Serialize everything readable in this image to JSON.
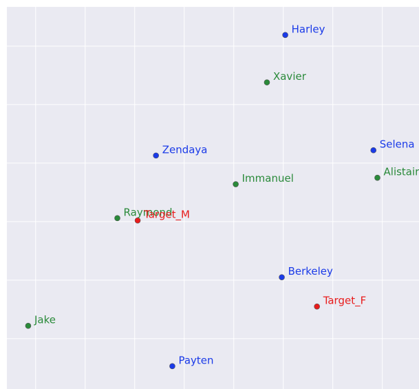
{
  "chart_data": {
    "type": "scatter",
    "xlim": [
      -0.58,
      7.74
    ],
    "ylim": [
      -0.86,
      5.67
    ],
    "xticks": [
      0,
      1,
      2,
      3,
      4,
      5,
      6,
      7
    ],
    "yticks": [
      0,
      1,
      2,
      3,
      4,
      5
    ],
    "grid": true,
    "series": [
      {
        "color": "#1a3ae8",
        "labels": [
          "Harley",
          "Selena",
          "Zendaya",
          "Berkeley",
          "Payten"
        ],
        "x": [
          5.04,
          6.82,
          2.43,
          4.97,
          2.76
        ],
        "y": [
          5.19,
          3.22,
          3.13,
          1.05,
          -0.47
        ]
      },
      {
        "color": "#2a8a3a",
        "labels": [
          "Xavier",
          "Alistair",
          "Immanuel",
          "Raymond",
          "Jake"
        ],
        "x": [
          4.67,
          6.9,
          4.04,
          1.65,
          -0.15
        ],
        "y": [
          4.38,
          2.75,
          2.64,
          2.06,
          0.22
        ]
      },
      {
        "color": "#e81c1c",
        "labels": [
          "Target_M",
          "Target_F"
        ],
        "x": [
          2.06,
          5.68
        ],
        "y": [
          2.02,
          0.55
        ]
      }
    ]
  }
}
